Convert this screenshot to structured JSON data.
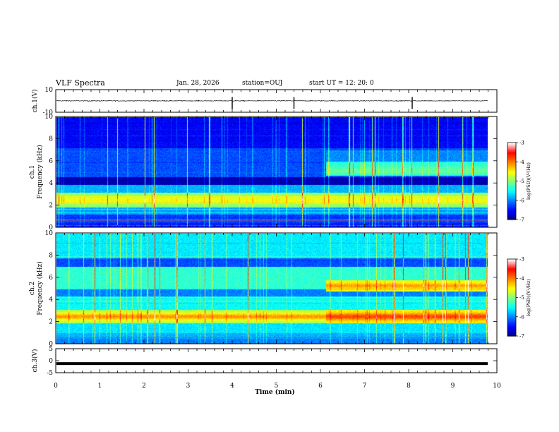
{
  "header": {
    "title": "VLF Spectra",
    "date": "Jan. 28, 2026",
    "station": "station=OUJ",
    "start": "start UT =  12: 20: 0"
  },
  "chart_data": [
    {
      "type": "line",
      "name": "ch1-waveform",
      "ylabel": "ch.1(V)",
      "ylim": [
        -10,
        10
      ],
      "yticks": [
        "10",
        "-10"
      ],
      "xlim": [
        0,
        10
      ],
      "series": [
        {
          "mean": 0,
          "amplitude_note": "noise ~±0.6 V, spikes near 4.0, 5.4, 8.1 min",
          "spikes_min": [
            4.0,
            5.4,
            8.08
          ]
        }
      ]
    },
    {
      "type": "heatmap",
      "name": "ch1-spectrogram",
      "ylabel": "ch.1\nFrequency (kHz)",
      "ylim": [
        0,
        10
      ],
      "yticks": [
        "0",
        "2",
        "4",
        "6",
        "8",
        "10"
      ],
      "xlim": [
        0,
        9.85
      ],
      "colorbar": {
        "label": "log(PSD)(V²/Hz)",
        "range": [
          -7,
          -3
        ],
        "ticks": [
          "-3",
          "-4",
          "-5",
          "-6",
          "-7"
        ]
      },
      "change_time_min": 6.1
    },
    {
      "type": "heatmap",
      "name": "ch2-spectrogram",
      "ylabel": "ch.2\nFrequency (kHz)",
      "ylim": [
        0,
        10
      ],
      "yticks": [
        "0",
        "2",
        "4",
        "6",
        "8",
        "10"
      ],
      "xlim": [
        0,
        9.85
      ],
      "colorbar": {
        "label": "log(PSD)(V²/Hz)",
        "range": [
          -7,
          -3
        ],
        "ticks": [
          "-3",
          "-4",
          "-5",
          "-6",
          "-7"
        ]
      },
      "change_time_min": 6.1
    },
    {
      "type": "line",
      "name": "ch3-waveform",
      "ylabel": "ch.3(V)",
      "ylim": [
        -5,
        5
      ],
      "yticks": [
        "5",
        "0",
        "-5"
      ],
      "xlim": [
        0,
        10
      ],
      "series": [
        {
          "value": -1.2
        }
      ]
    }
  ],
  "xaxis": {
    "label": "Time (min)",
    "ticks": [
      "0",
      "1",
      "2",
      "3",
      "4",
      "5",
      "6",
      "7",
      "8",
      "9",
      "10"
    ]
  },
  "colors": {
    "cmap": [
      "#000080",
      "#0000ff",
      "#0080ff",
      "#00ffff",
      "#80ff80",
      "#ffff00",
      "#ff8000",
      "#ff0000",
      "#ffffff"
    ]
  }
}
